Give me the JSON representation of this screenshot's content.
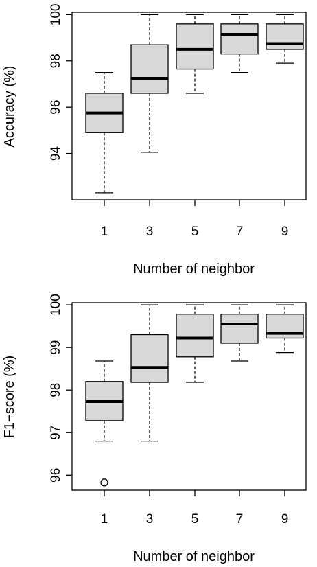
{
  "chart_data": [
    {
      "type": "boxplot",
      "xlabel": "Number of neighbor",
      "ylabel": "Accuracy (%)",
      "categories": [
        "1",
        "3",
        "5",
        "7",
        "9"
      ],
      "yticks": [
        "94",
        "96",
        "98",
        "100"
      ],
      "ylim": [
        92.0,
        100.1
      ],
      "grid": false,
      "box_fill": "#d9d9d9",
      "boxes": [
        {
          "category": "1",
          "whisker_low": 92.3,
          "q1": 94.9,
          "median": 95.75,
          "q3": 96.6,
          "whisker_high": 97.5,
          "outliers": []
        },
        {
          "category": "3",
          "whisker_low": 94.05,
          "q1": 96.6,
          "median": 97.25,
          "q3": 98.7,
          "whisker_high": 100.0,
          "outliers": []
        },
        {
          "category": "5",
          "whisker_low": 96.6,
          "q1": 97.65,
          "median": 98.5,
          "q3": 99.6,
          "whisker_high": 100.0,
          "outliers": []
        },
        {
          "category": "7",
          "whisker_low": 97.5,
          "q1": 98.3,
          "median": 99.15,
          "q3": 99.6,
          "whisker_high": 100.0,
          "outliers": []
        },
        {
          "category": "9",
          "whisker_low": 97.9,
          "q1": 98.5,
          "median": 98.75,
          "q3": 99.6,
          "whisker_high": 100.0,
          "outliers": []
        }
      ]
    },
    {
      "type": "boxplot",
      "xlabel": "Number of neighbor",
      "ylabel": "F1−score (%)",
      "categories": [
        "1",
        "3",
        "5",
        "7",
        "9"
      ],
      "yticks": [
        "96",
        "97",
        "98",
        "99",
        "100"
      ],
      "ylim": [
        95.65,
        100.05
      ],
      "grid": false,
      "box_fill": "#d9d9d9",
      "boxes": [
        {
          "category": "1",
          "whisker_low": 96.8,
          "q1": 97.28,
          "median": 97.73,
          "q3": 98.2,
          "whisker_high": 98.68,
          "outliers": [
            95.83
          ]
        },
        {
          "category": "3",
          "whisker_low": 96.8,
          "q1": 98.18,
          "median": 98.53,
          "q3": 99.3,
          "whisker_high": 100.0,
          "outliers": []
        },
        {
          "category": "5",
          "whisker_low": 98.18,
          "q1": 98.78,
          "median": 99.22,
          "q3": 99.78,
          "whisker_high": 100.0,
          "outliers": []
        },
        {
          "category": "7",
          "whisker_low": 98.68,
          "q1": 99.1,
          "median": 99.55,
          "q3": 99.78,
          "whisker_high": 100.0,
          "outliers": []
        },
        {
          "category": "9",
          "whisker_low": 98.88,
          "q1": 99.22,
          "median": 99.33,
          "q3": 99.78,
          "whisker_high": 100.0,
          "outliers": []
        }
      ]
    }
  ]
}
